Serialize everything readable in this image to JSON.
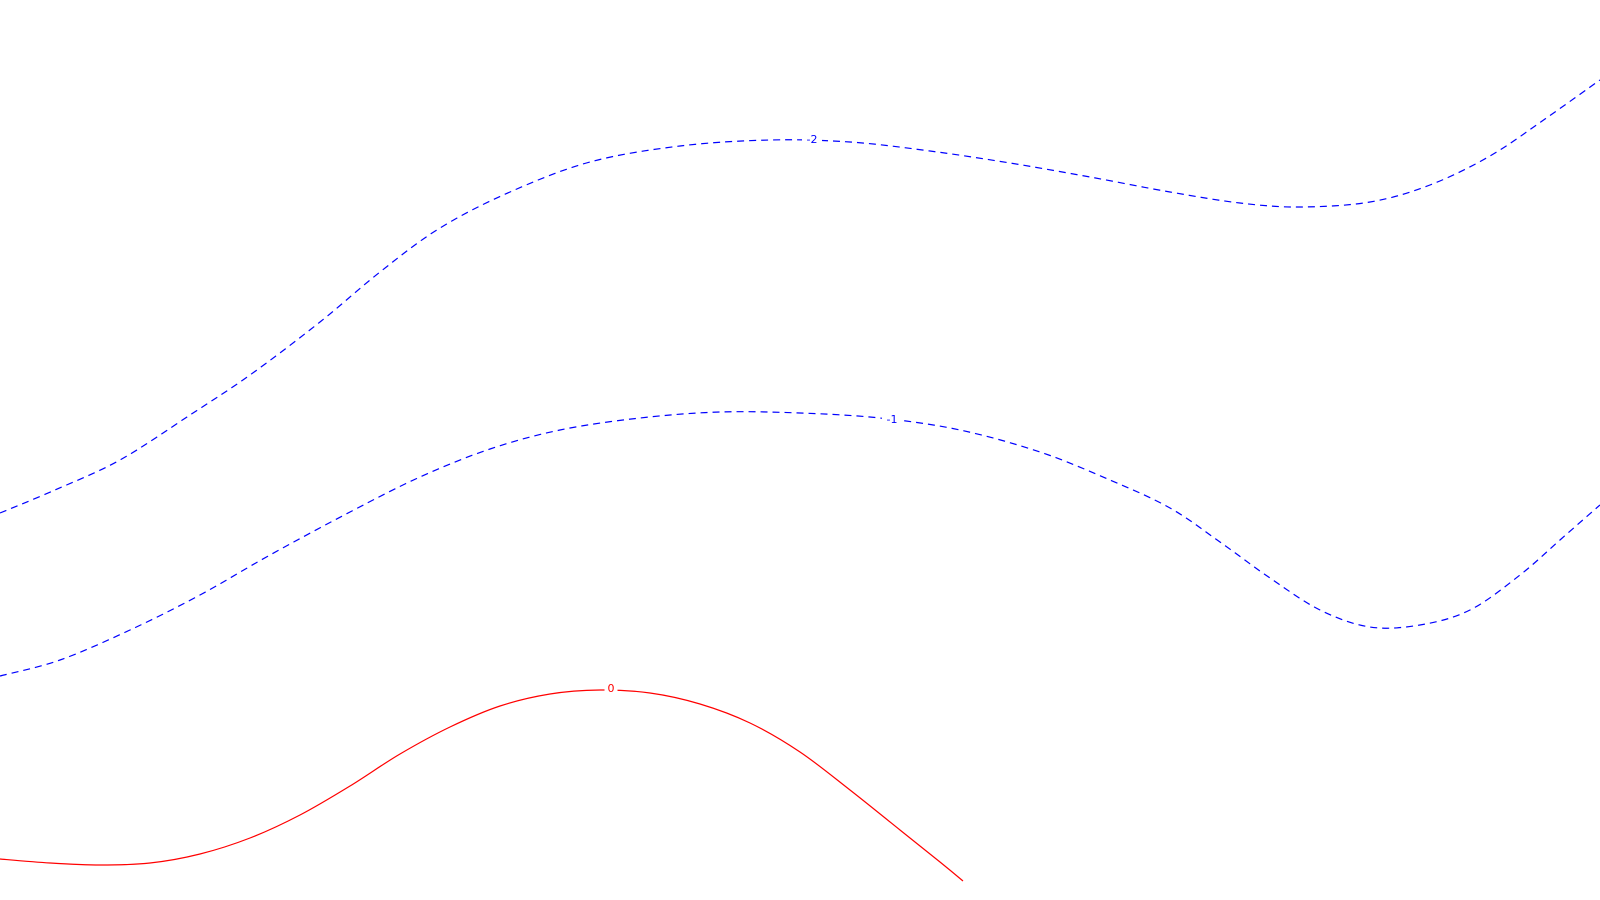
{
  "chart_data": {
    "type": "contour",
    "colors": {
      "negative": "#0000ff",
      "zero": "#ff0000",
      "background": "#ffffff"
    },
    "contours": [
      {
        "level": -2,
        "label": "-2",
        "color": "#0000ff",
        "style": "dashed"
      },
      {
        "level": -1,
        "label": "-1",
        "color": "#0000ff",
        "style": "dashed"
      },
      {
        "level": 0,
        "label": "0",
        "color": "#ff0000",
        "style": "solid"
      }
    ]
  }
}
